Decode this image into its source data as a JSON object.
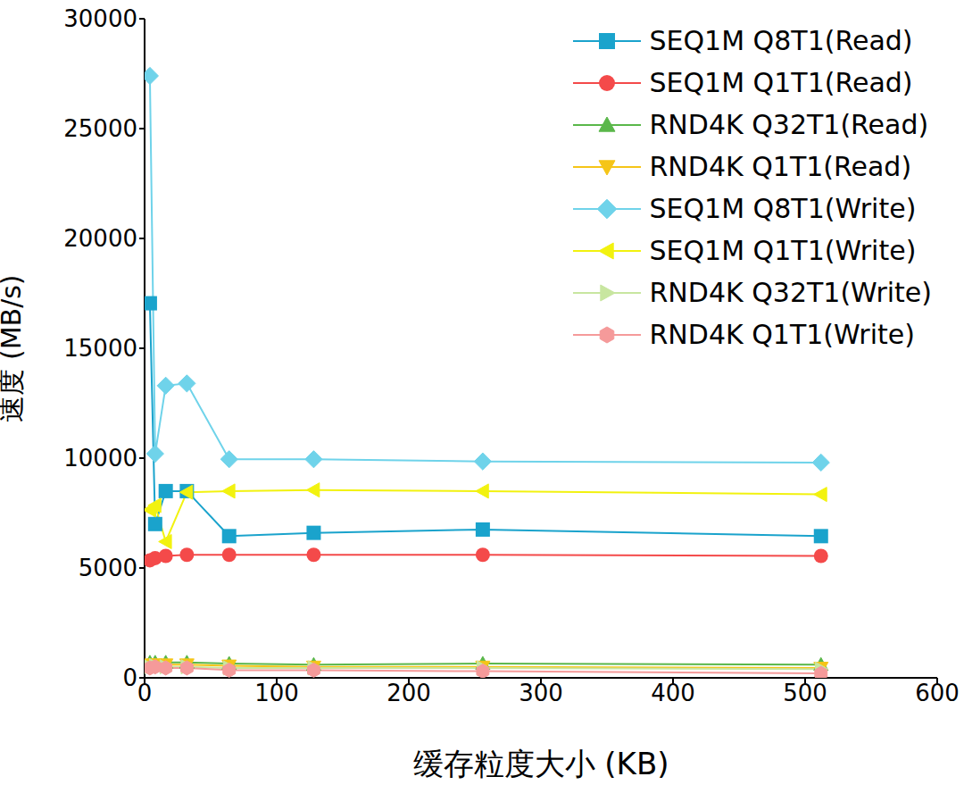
{
  "chart_data": {
    "type": "line",
    "x_label": "缓存粒度大小 (KB)",
    "y_label": "速度 (MB/s)",
    "x": [
      4,
      8,
      16,
      32,
      64,
      128,
      256,
      512
    ],
    "xlim": [
      0,
      600
    ],
    "xticks": [
      0,
      100,
      200,
      300,
      400,
      500,
      600
    ],
    "ylim": [
      0,
      30000
    ],
    "yticks": [
      0,
      5000,
      10000,
      15000,
      20000,
      25000,
      30000
    ],
    "grid": false,
    "legend": "upper right",
    "series": [
      {
        "name": "SEQ1M Q8T1(Read)",
        "color": "#1aa3cc",
        "marker": "square",
        "values": [
          17050,
          7000,
          8500,
          8500,
          6450,
          6600,
          6750,
          6450
        ]
      },
      {
        "name": "SEQ1M Q1T1(Read)",
        "color": "#f44a4a",
        "marker": "circle",
        "values": [
          5350,
          5450,
          5550,
          5600,
          5600,
          5600,
          5600,
          5550
        ]
      },
      {
        "name": "RND4K Q32T1(Read)",
        "color": "#5ab74a",
        "marker": "triangle-up",
        "values": [
          700,
          700,
          700,
          700,
          650,
          600,
          650,
          600
        ]
      },
      {
        "name": "RND4K Q1T1(Read)",
        "color": "#f5c518",
        "marker": "triangle-down",
        "values": [
          600,
          600,
          600,
          600,
          550,
          500,
          500,
          450
        ]
      },
      {
        "name": "SEQ1M Q8T1(Write)",
        "color": "#6fd3ea",
        "marker": "diamond",
        "values": [
          27400,
          10200,
          13300,
          13400,
          9950,
          9950,
          9850,
          9800
        ]
      },
      {
        "name": "SEQ1M Q1T1(Write)",
        "color": "#f2f20f",
        "marker": "triangle-left",
        "values": [
          7650,
          7850,
          6200,
          8450,
          8500,
          8550,
          8500,
          8350
        ]
      },
      {
        "name": "RND4K Q32T1(Write)",
        "color": "#c8e6a0",
        "marker": "triangle-right",
        "values": [
          500,
          550,
          500,
          500,
          450,
          450,
          450,
          400
        ]
      },
      {
        "name": "RND4K Q1T1(Write)",
        "color": "#f59a9a",
        "marker": "hexagon",
        "values": [
          450,
          500,
          450,
          450,
          350,
          350,
          300,
          200
        ]
      }
    ]
  }
}
